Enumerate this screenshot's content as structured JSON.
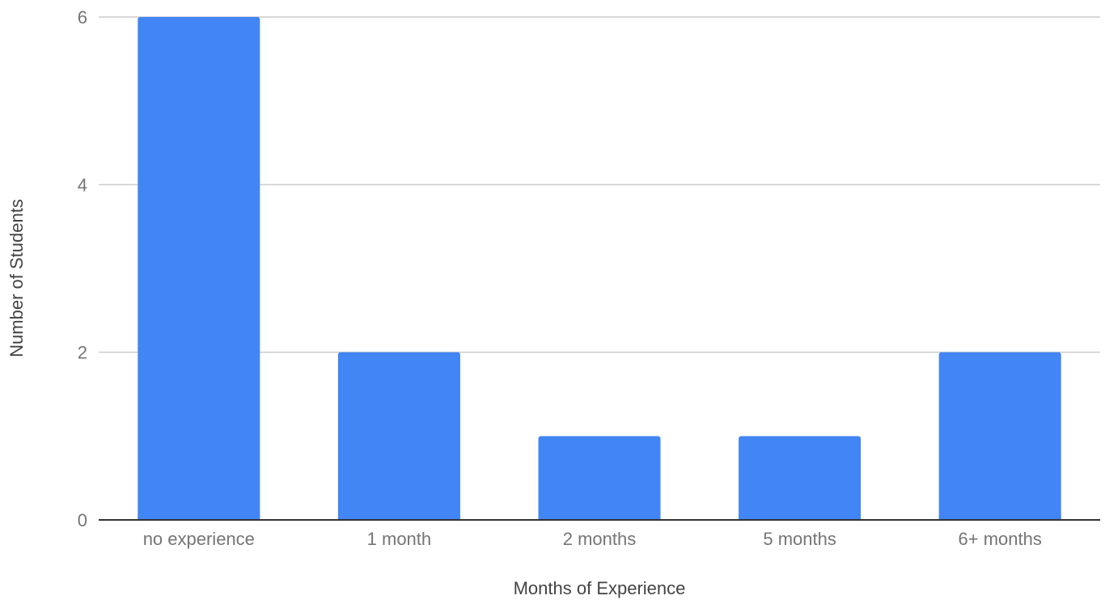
{
  "chart_data": {
    "type": "bar",
    "categories": [
      "no experience",
      "1 month",
      "2 months",
      "5 months",
      "6+ months"
    ],
    "values": [
      6,
      2,
      1,
      1,
      2
    ],
    "title": "",
    "xlabel": "Months of Experience",
    "ylabel": "Number of Students",
    "ylim": [
      0,
      6
    ],
    "yticks": [
      0,
      2,
      4,
      6
    ],
    "grid": true,
    "legend": "none",
    "colors": {
      "bar": "#4285f4",
      "grid": "#cccccc",
      "axis": "#333333",
      "text": "#757575"
    }
  }
}
